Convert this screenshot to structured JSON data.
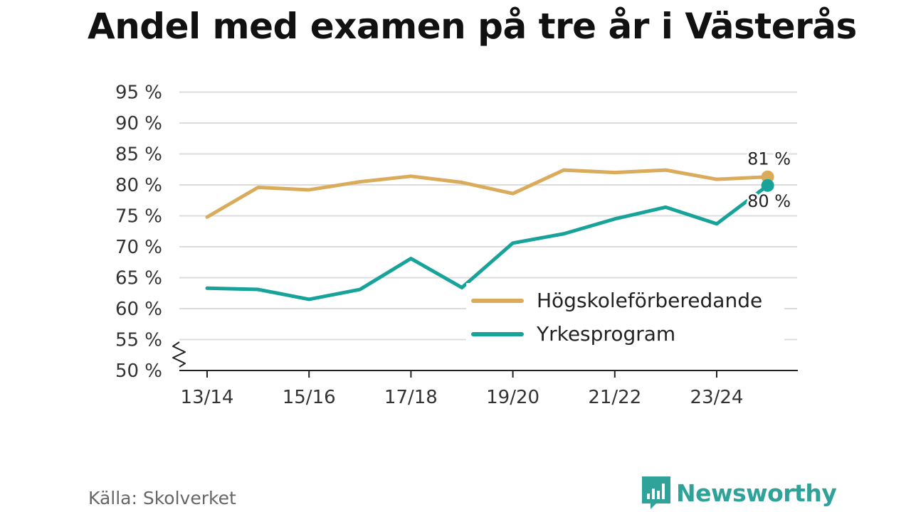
{
  "header": {
    "title": "Andel med examen på tre år i Västerås"
  },
  "footer": {
    "source": "Källa: Skolverket",
    "brand": "Newsworthy",
    "brand_icon": "bar-chart-speech-bubble-icon"
  },
  "colors": {
    "hogskole": "#d9ab5b",
    "yrkes": "#17a39a",
    "grid": "#dcdcdc",
    "axis": "#222222",
    "brand": "#2fa39a"
  },
  "chart_data": {
    "type": "line",
    "title": "Andel med examen på tre år i Västerås",
    "x": [
      "13/14",
      "14/15",
      "15/16",
      "16/17",
      "17/18",
      "18/19",
      "19/20",
      "20/21",
      "21/22",
      "22/23",
      "23/24",
      "24/25"
    ],
    "x_tick_labels": [
      "13/14",
      "15/16",
      "17/18",
      "19/20",
      "21/22",
      "23/24"
    ],
    "y_tick_labels": [
      "50 %",
      "55 %",
      "60 %",
      "65 %",
      "70 %",
      "75 %",
      "80 %",
      "85 %",
      "90 %",
      "95 %"
    ],
    "ylim": [
      50,
      95
    ],
    "y_axis_break": true,
    "grid": true,
    "legend_position": "lower-right",
    "series": [
      {
        "name": "Högskoleförberedande",
        "color": "#d9ab5b",
        "values": [
          74.8,
          79.6,
          79.2,
          80.5,
          81.4,
          80.4,
          78.6,
          82.4,
          82.0,
          82.4,
          80.9,
          81.3
        ],
        "end_label": "81 %"
      },
      {
        "name": "Yrkesprogram",
        "color": "#17a39a",
        "values": [
          63.3,
          63.1,
          61.5,
          63.1,
          68.1,
          63.4,
          70.6,
          72.1,
          74.5,
          76.4,
          73.7,
          79.9
        ],
        "end_label": "80 %"
      }
    ]
  }
}
